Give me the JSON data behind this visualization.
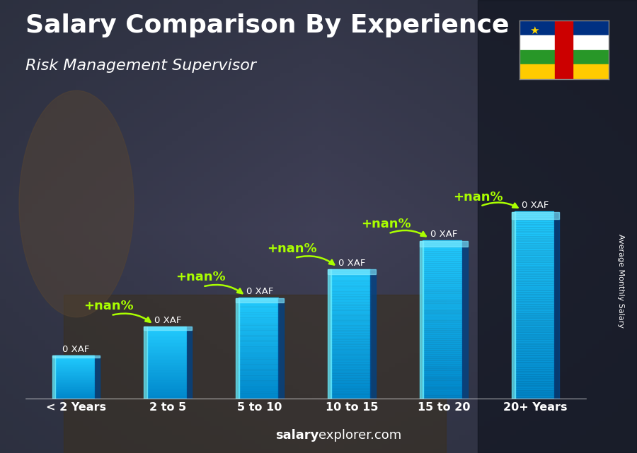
{
  "title": "Salary Comparison By Experience",
  "subtitle": "Risk Management Supervisor",
  "categories": [
    "< 2 Years",
    "2 to 5",
    "5 to 10",
    "10 to 15",
    "15 to 20",
    "20+ Years"
  ],
  "values": [
    1.5,
    2.5,
    3.5,
    4.5,
    5.5,
    6.5
  ],
  "bar_color_main": "#00aadd",
  "bar_color_light": "#44ddff",
  "bar_color_dark": "#0066aa",
  "bar_labels": [
    "0 XAF",
    "0 XAF",
    "0 XAF",
    "0 XAF",
    "0 XAF",
    "0 XAF"
  ],
  "increase_labels": [
    "+nan%",
    "+nan%",
    "+nan%",
    "+nan%",
    "+nan%"
  ],
  "ylabel": "Average Monthly Salary",
  "footer_bold": "salary",
  "footer_normal": "explorer.com",
  "bg_overlay_color": "#1a2035",
  "bg_overlay_alpha": 0.45,
  "title_color": "#ffffff",
  "subtitle_color": "#ffffff",
  "bar_label_color": "#ffffff",
  "increase_color": "#aaff00",
  "title_fontsize": 26,
  "subtitle_fontsize": 16,
  "footer_fontsize": 13,
  "xlabel_fontsize": 12,
  "ylabel_fontsize": 8,
  "flag_stripes": [
    "#003082",
    "#ffffff",
    "#289728",
    "#FFCB00"
  ],
  "flag_red": "#CC0000",
  "flag_star_color": "#FFD700"
}
